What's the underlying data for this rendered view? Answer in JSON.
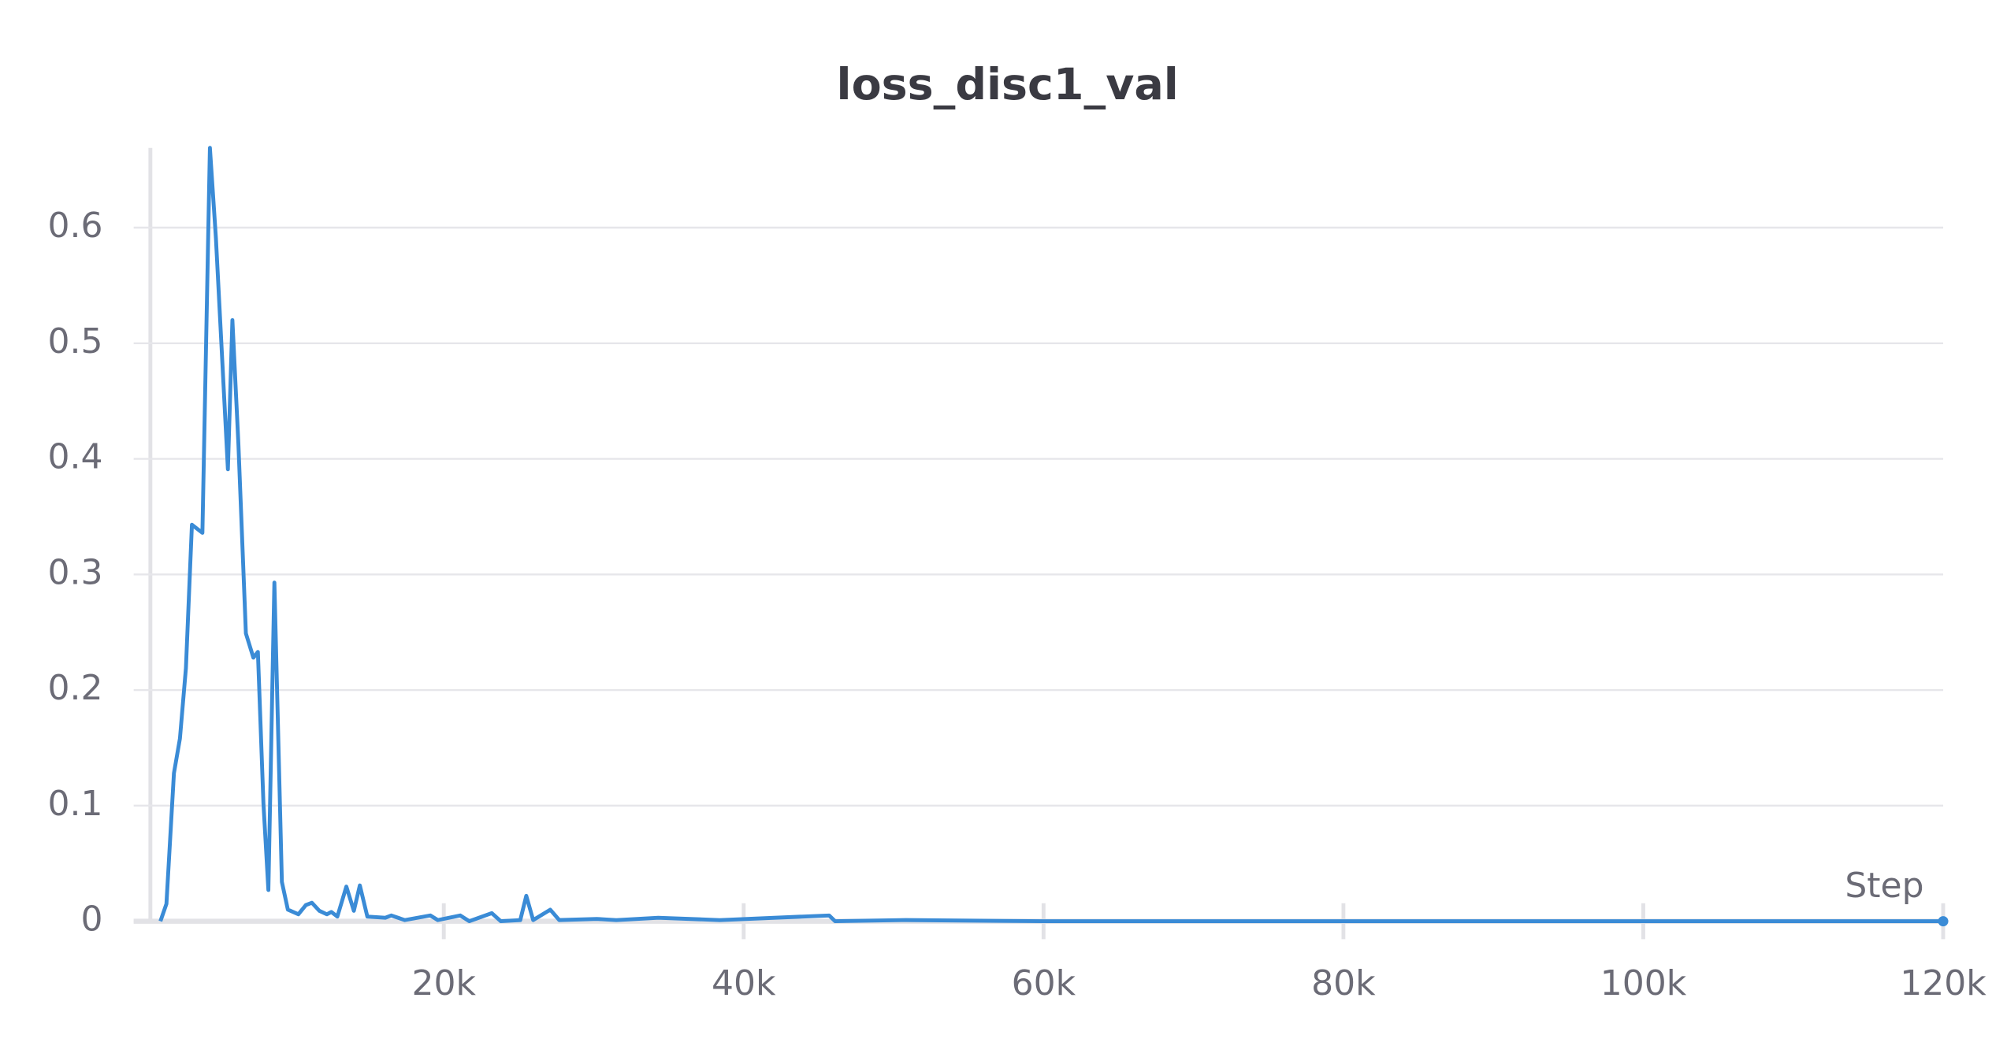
{
  "chart_data": {
    "type": "line",
    "title": "loss_disc1_val",
    "x_label": "Step",
    "xlim": [
      0,
      120000
    ],
    "ylim": [
      0,
      0.669
    ],
    "xticks": [
      {
        "value": 20000,
        "label": "20k"
      },
      {
        "value": 40000,
        "label": "40k"
      },
      {
        "value": 60000,
        "label": "60k"
      },
      {
        "value": 80000,
        "label": "80k"
      },
      {
        "value": 100000,
        "label": "100k"
      },
      {
        "value": 120000,
        "label": "120k"
      }
    ],
    "yticks": [
      0,
      0.1,
      0.2,
      0.3,
      0.4,
      0.5,
      0.6
    ],
    "grid": true,
    "series": [
      {
        "name": "loss_disc1_val",
        "color": "#3a8bd6",
        "x": [
          1100,
          1500,
          2000,
          2400,
          2800,
          3200,
          3900,
          4400,
          4800,
          5600,
          5900,
          6300,
          6800,
          7300,
          7600,
          7970,
          8300,
          8700,
          9200,
          9600,
          10300,
          10800,
          11200,
          11700,
          12200,
          12500,
          12900,
          13500,
          14000,
          14400,
          14900,
          16100,
          16500,
          17400,
          19100,
          19600,
          21100,
          21700,
          23200,
          23800,
          25100,
          25500,
          25960,
          27100,
          27700,
          30200,
          31500,
          34300,
          38400,
          45700,
          46100,
          50800,
          60000,
          120000
        ],
        "values": [
          0,
          0.015,
          0.128,
          0.158,
          0.219,
          0.343,
          0.336,
          0.669,
          0.591,
          0.391,
          0.52,
          0.413,
          0.249,
          0.228,
          0.233,
          0.102,
          0.027,
          0.293,
          0.034,
          0.01,
          0.006,
          0.014,
          0.016,
          0.009,
          0.006,
          0.008,
          0.004,
          0.03,
          0.009,
          0.031,
          0.004,
          0.003,
          0.005,
          0.001,
          0.005,
          0.001,
          0.005,
          0,
          0.007,
          0,
          0.001,
          0.022,
          0.001,
          0.01,
          0.001,
          0.002,
          0.001,
          0.003,
          0.001,
          0.005,
          0,
          0.001,
          0,
          0
        ]
      }
    ]
  }
}
